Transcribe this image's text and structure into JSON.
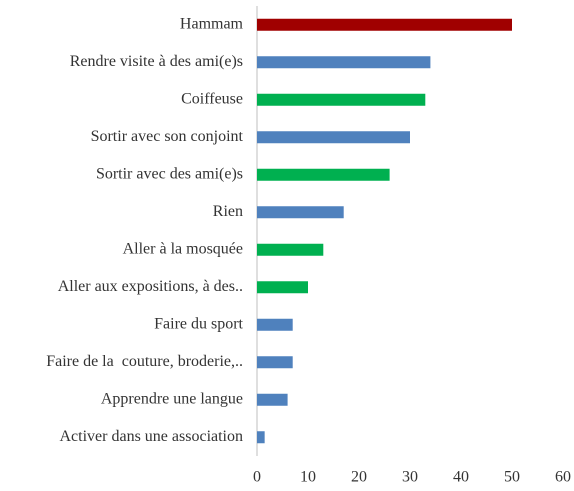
{
  "chart_data": {
    "type": "bar",
    "orientation": "horizontal",
    "categories": [
      "Hammam",
      "Rendre visite à des ami(e)s",
      "Coiffeuse",
      "Sortir avec son conjoint",
      "Sortir avec des ami(e)s",
      "Rien",
      "Aller à la mosquée",
      "Aller aux expositions, à des..",
      "Faire du sport",
      "Faire de la  couture, broderie,..",
      "Apprendre une langue",
      "Activer dans une association"
    ],
    "values": [
      50,
      34,
      33,
      30,
      26,
      17,
      13,
      10,
      7,
      7,
      6,
      1.5
    ],
    "colors": [
      "#a00000",
      "#4f81bd",
      "#00b050",
      "#4f81bd",
      "#00b050",
      "#4f81bd",
      "#00b050",
      "#00b050",
      "#4f81bd",
      "#4f81bd",
      "#4f81bd",
      "#4f81bd"
    ],
    "xlim": [
      0,
      60
    ],
    "xticks": [
      0,
      10,
      20,
      30,
      40,
      50,
      60
    ],
    "grid": false
  }
}
